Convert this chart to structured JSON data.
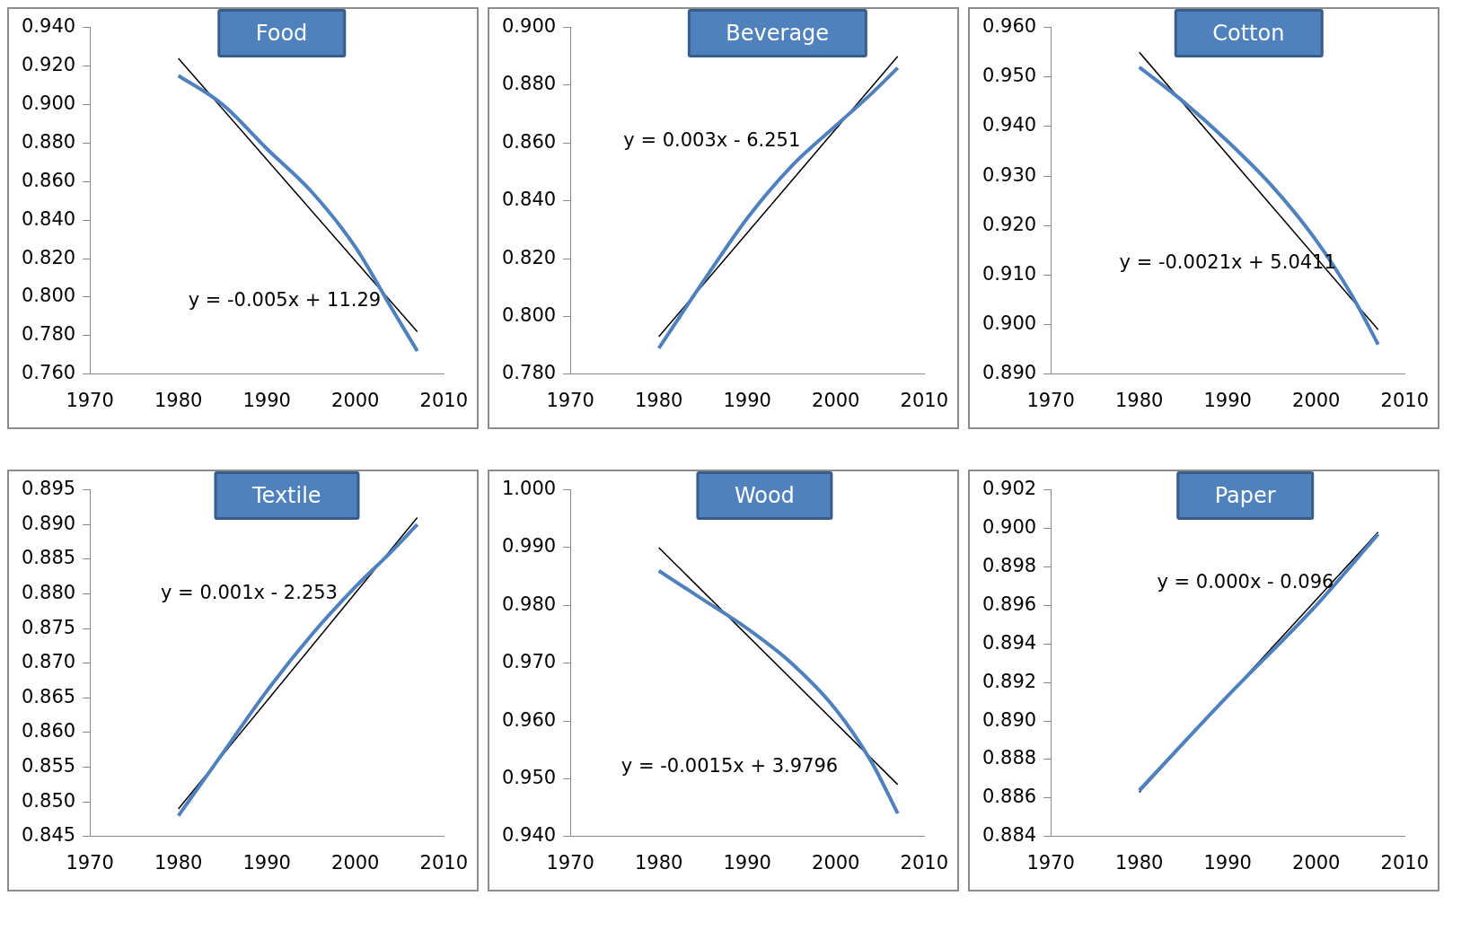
{
  "chart_data": [
    {
      "type": "line",
      "title": "Food",
      "xlim": [
        1970,
        2010
      ],
      "xticks": [
        1970,
        1980,
        1990,
        2000,
        2010
      ],
      "ylim": [
        0.76,
        0.94
      ],
      "yticks": [
        {
          "value": 0.76,
          "label": "0.760"
        },
        {
          "value": 0.78,
          "label": "0.780"
        },
        {
          "value": 0.8,
          "label": "0.800"
        },
        {
          "value": 0.82,
          "label": "0.820"
        },
        {
          "value": 0.84,
          "label": "0.840"
        },
        {
          "value": 0.86,
          "label": "0.860"
        },
        {
          "value": 0.88,
          "label": "0.880"
        },
        {
          "value": 0.9,
          "label": "0.900"
        },
        {
          "value": 0.92,
          "label": "0.920"
        },
        {
          "value": 0.94,
          "label": "0.940"
        }
      ],
      "grid": false,
      "legend": false,
      "marker": "none",
      "annotations": [
        "y = -0.005x + 11.29"
      ],
      "series": [
        {
          "type": "line",
          "color": "#4f81bd",
          "x": [
            1980,
            1985,
            1990,
            1995,
            2000,
            2004,
            2007
          ],
          "values": [
            0.915,
            0.9,
            0.877,
            0.855,
            0.826,
            0.795,
            0.772
          ]
        },
        {
          "type": "line",
          "color": "#000000",
          "x": [
            1980,
            2007
          ],
          "values": [
            0.924,
            0.782
          ]
        }
      ]
    },
    {
      "type": "line",
      "title": "Beverage",
      "xlim": [
        1970,
        2010
      ],
      "xticks": [
        1970,
        1980,
        1990,
        2000,
        2010
      ],
      "ylim": [
        0.78,
        0.9
      ],
      "yticks": [
        {
          "value": 0.78,
          "label": "0.780"
        },
        {
          "value": 0.8,
          "label": "0.800"
        },
        {
          "value": 0.82,
          "label": "0.820"
        },
        {
          "value": 0.84,
          "label": "0.840"
        },
        {
          "value": 0.86,
          "label": "0.860"
        },
        {
          "value": 0.88,
          "label": "0.880"
        },
        {
          "value": 0.9,
          "label": "0.900"
        }
      ],
      "grid": false,
      "legend": false,
      "marker": "none",
      "annotations": [
        "y = 0.003x - 6.251"
      ],
      "series": [
        {
          "type": "line",
          "color": "#4f81bd",
          "x": [
            1980,
            1985,
            1990,
            1995,
            2000,
            2004,
            2007
          ],
          "values": [
            0.789,
            0.812,
            0.834,
            0.852,
            0.866,
            0.877,
            0.886
          ]
        },
        {
          "type": "line",
          "color": "#000000",
          "x": [
            1980,
            2007
          ],
          "values": [
            0.793,
            0.89
          ]
        }
      ]
    },
    {
      "type": "line",
      "title": "Cotton",
      "xlim": [
        1970,
        2010
      ],
      "xticks": [
        1970,
        1980,
        1990,
        2000,
        2010
      ],
      "ylim": [
        0.89,
        0.96
      ],
      "yticks": [
        {
          "value": 0.89,
          "label": "0.890"
        },
        {
          "value": 0.9,
          "label": "0.900"
        },
        {
          "value": 0.91,
          "label": "0.910"
        },
        {
          "value": 0.92,
          "label": "0.920"
        },
        {
          "value": 0.93,
          "label": "0.930"
        },
        {
          "value": 0.94,
          "label": "0.940"
        },
        {
          "value": 0.95,
          "label": "0.950"
        },
        {
          "value": 0.96,
          "label": "0.960"
        }
      ],
      "grid": false,
      "legend": false,
      "marker": "none",
      "annotations": [
        "y = -0.0021x + 5.0411"
      ],
      "series": [
        {
          "type": "line",
          "color": "#4f81bd",
          "x": [
            1980,
            1985,
            1990,
            1995,
            2000,
            2004,
            2007
          ],
          "values": [
            0.952,
            0.945,
            0.937,
            0.928,
            0.917,
            0.906,
            0.896
          ]
        },
        {
          "type": "line",
          "color": "#000000",
          "x": [
            1980,
            2007
          ],
          "values": [
            0.955,
            0.899
          ]
        }
      ]
    },
    {
      "type": "line",
      "title": "Textile",
      "xlim": [
        1970,
        2010
      ],
      "xticks": [
        1970,
        1980,
        1990,
        2000,
        2010
      ],
      "ylim": [
        0.845,
        0.895
      ],
      "yticks": [
        {
          "value": 0.845,
          "label": "0.845"
        },
        {
          "value": 0.85,
          "label": "0.850"
        },
        {
          "value": 0.855,
          "label": "0.855"
        },
        {
          "value": 0.86,
          "label": "0.860"
        },
        {
          "value": 0.865,
          "label": "0.865"
        },
        {
          "value": 0.87,
          "label": "0.870"
        },
        {
          "value": 0.875,
          "label": "0.875"
        },
        {
          "value": 0.88,
          "label": "0.880"
        },
        {
          "value": 0.885,
          "label": "0.885"
        },
        {
          "value": 0.89,
          "label": "0.890"
        },
        {
          "value": 0.895,
          "label": "0.895"
        }
      ],
      "grid": false,
      "legend": false,
      "marker": "none",
      "annotations": [
        "y = 0.001x - 2.253"
      ],
      "series": [
        {
          "type": "line",
          "color": "#4f81bd",
          "x": [
            1980,
            1985,
            1990,
            1995,
            2000,
            2004,
            2007
          ],
          "values": [
            0.848,
            0.857,
            0.866,
            0.874,
            0.881,
            0.886,
            0.89
          ]
        },
        {
          "type": "line",
          "color": "#000000",
          "x": [
            1980,
            2007
          ],
          "values": [
            0.849,
            0.891
          ]
        }
      ]
    },
    {
      "type": "line",
      "title": "Wood",
      "xlim": [
        1970,
        2010
      ],
      "xticks": [
        1970,
        1980,
        1990,
        2000,
        2010
      ],
      "ylim": [
        0.94,
        1.0
      ],
      "yticks": [
        {
          "value": 0.94,
          "label": "0.940"
        },
        {
          "value": 0.95,
          "label": "0.950"
        },
        {
          "value": 0.96,
          "label": "0.960"
        },
        {
          "value": 0.97,
          "label": "0.970"
        },
        {
          "value": 0.98,
          "label": "0.980"
        },
        {
          "value": 0.99,
          "label": "0.990"
        },
        {
          "value": 1.0,
          "label": "1.000"
        }
      ],
      "grid": false,
      "legend": false,
      "marker": "none",
      "annotations": [
        "y = -0.0015x + 3.9796"
      ],
      "series": [
        {
          "type": "line",
          "color": "#4f81bd",
          "x": [
            1980,
            1985,
            1990,
            1995,
            2000,
            2004,
            2007
          ],
          "values": [
            0.986,
            0.981,
            0.976,
            0.97,
            0.962,
            0.953,
            0.944
          ]
        },
        {
          "type": "line",
          "color": "#000000",
          "x": [
            1980,
            2007
          ],
          "values": [
            0.99,
            0.949
          ]
        }
      ]
    },
    {
      "type": "line",
      "title": "Paper",
      "xlim": [
        1970,
        2010
      ],
      "xticks": [
        1970,
        1980,
        1990,
        2000,
        2010
      ],
      "ylim": [
        0.884,
        0.902
      ],
      "yticks": [
        {
          "value": 0.884,
          "label": "0.884"
        },
        {
          "value": 0.886,
          "label": "0.886"
        },
        {
          "value": 0.888,
          "label": "0.888"
        },
        {
          "value": 0.89,
          "label": "0.890"
        },
        {
          "value": 0.892,
          "label": "0.892"
        },
        {
          "value": 0.894,
          "label": "0.894"
        },
        {
          "value": 0.896,
          "label": "0.896"
        },
        {
          "value": 0.898,
          "label": "0.898"
        },
        {
          "value": 0.9,
          "label": "0.900"
        },
        {
          "value": 0.902,
          "label": "0.902"
        }
      ],
      "grid": false,
      "legend": false,
      "marker": "none",
      "annotations": [
        "y = 0.000x - 0.096"
      ],
      "series": [
        {
          "type": "line",
          "color": "#4f81bd",
          "x": [
            1980,
            1990,
            2000,
            2007
          ],
          "values": [
            0.8864,
            0.8913,
            0.896,
            0.8997
          ]
        },
        {
          "type": "line",
          "color": "#000000",
          "x": [
            1980,
            2007
          ],
          "values": [
            0.8863,
            0.8998
          ]
        }
      ]
    }
  ]
}
